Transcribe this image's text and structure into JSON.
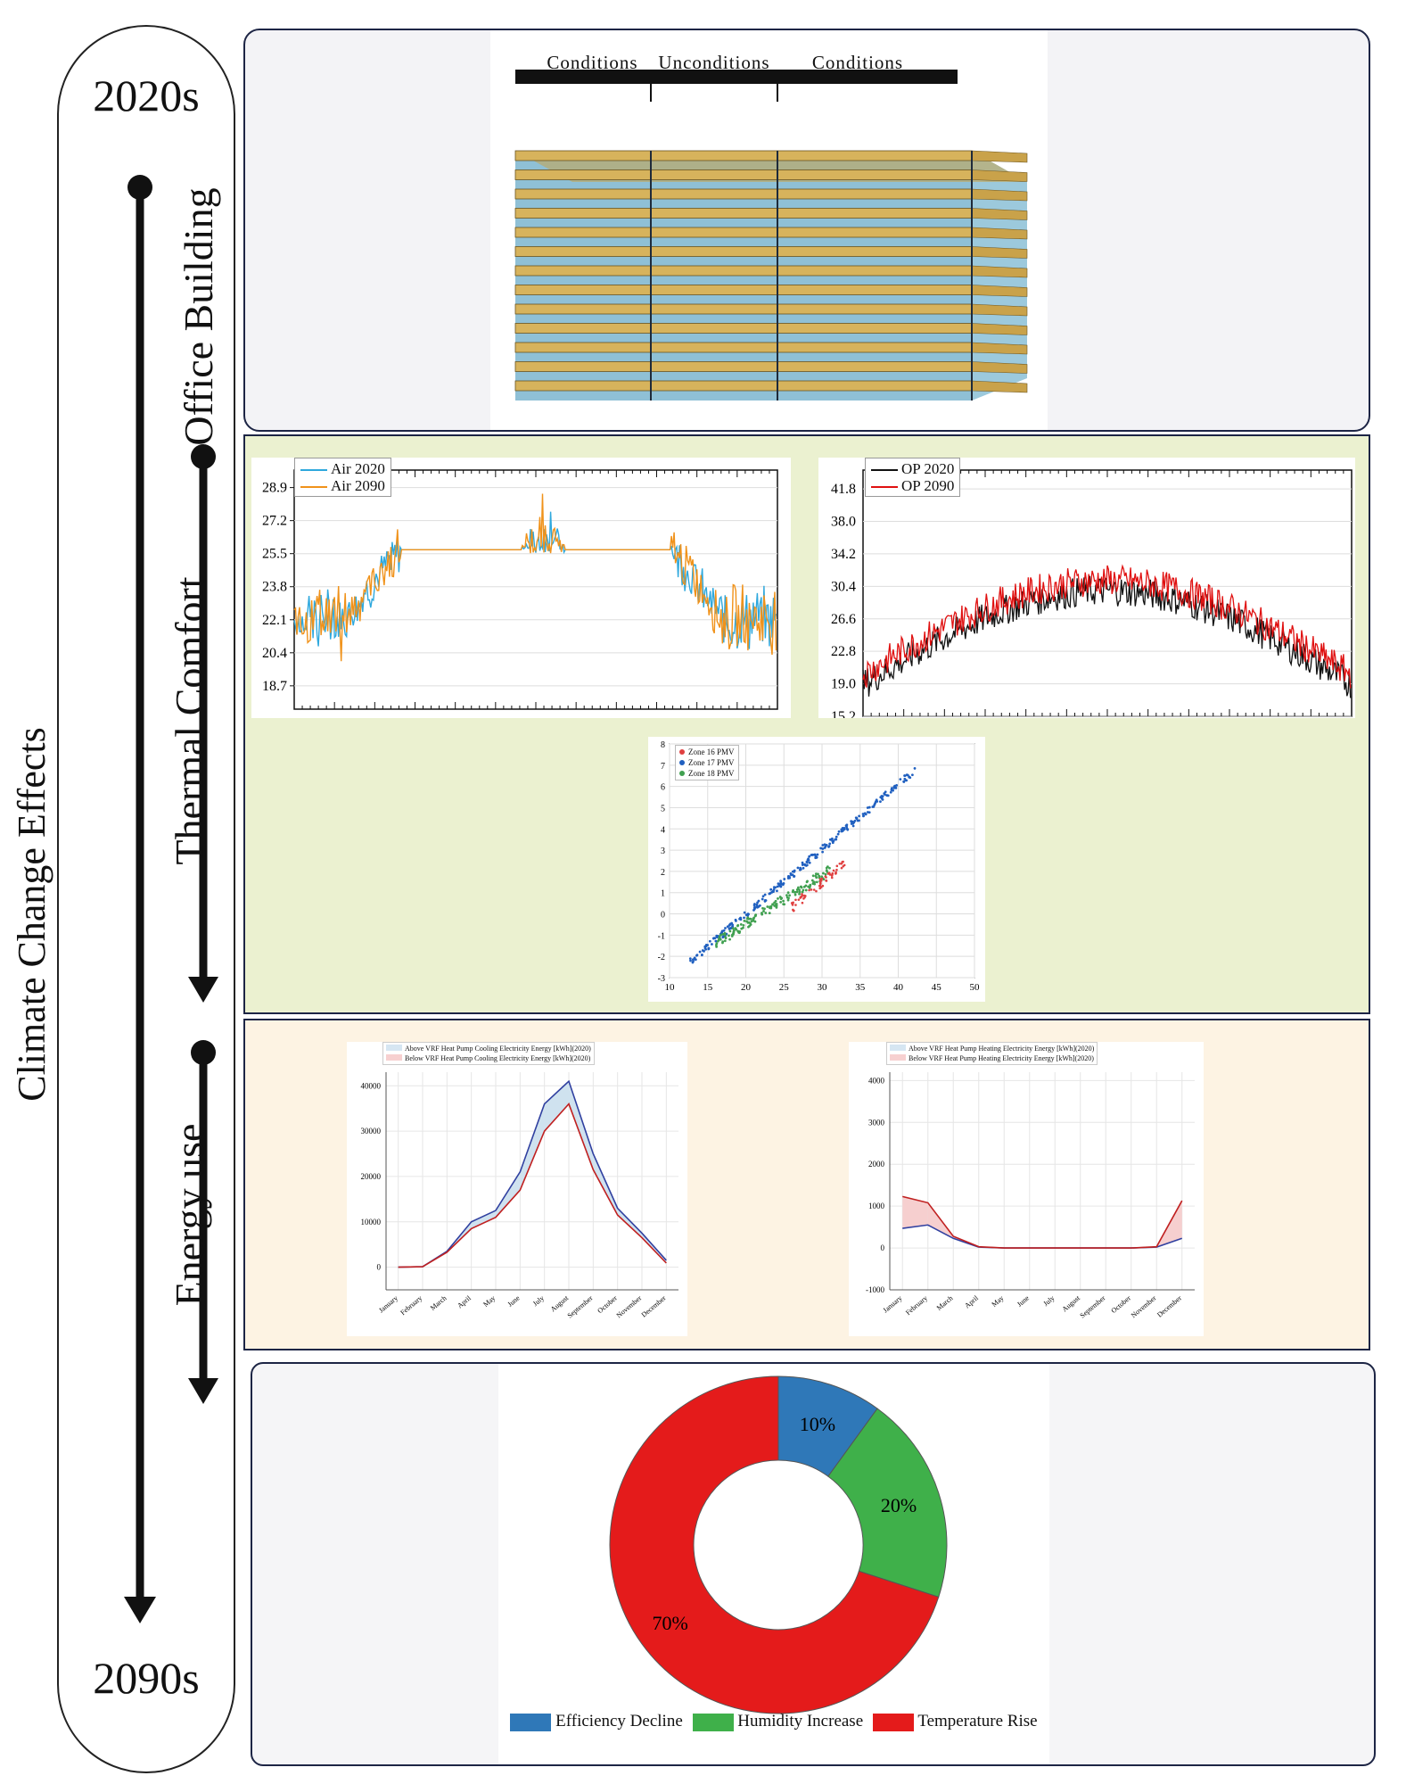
{
  "timeline": {
    "start_label": "2020s",
    "end_label": "2090s",
    "main_label": "Climate Change Effects",
    "steps": [
      {
        "label": "Office Building"
      },
      {
        "label": "Thermal Comfort"
      },
      {
        "label": "Energy use"
      }
    ]
  },
  "building": {
    "zone_labels": [
      "Conditions",
      "Unconditions",
      "Conditions"
    ]
  },
  "colors": {
    "panel_building_bg": "#f3f3f6",
    "panel_thermal_bg": "#ebf1d0",
    "panel_energy_bg": "#fdf3e3",
    "panel_summary_bg": "#f5f5f7",
    "air_2020": "#2ea8dd",
    "air_2090": "#f0921a",
    "op_2020": "#111111",
    "op_2090": "#e01010",
    "cooling_line_above": "#3040a0",
    "cooling_line_below": "#c02020",
    "efficiency": "#2f78b8",
    "humidity": "#3fb04a",
    "temperature": "#e41b1b"
  },
  "chart_data": [
    {
      "type": "line",
      "legend": [
        "Air 2020",
        "Air 2090"
      ],
      "yticks": [
        "28.9",
        "27.2",
        "25.5",
        "23.8",
        "22.1",
        "20.4",
        "18.7"
      ],
      "ylim": [
        17.5,
        29.8
      ]
    },
    {
      "type": "line",
      "legend": [
        "OP 2020",
        "OP 2090"
      ],
      "yticks": [
        "41.8",
        "38.0",
        "34.2",
        "30.4",
        "26.6",
        "22.8",
        "19.0",
        "15.2"
      ],
      "ylim": [
        15.2,
        44
      ]
    },
    {
      "type": "scatter",
      "legend": [
        "Zone 16 PMV",
        "Zone 17 PMV",
        "Zone 18 PMV"
      ],
      "xticks": [
        "10",
        "15",
        "20",
        "25",
        "30",
        "35",
        "40",
        "45",
        "50"
      ],
      "yticks": [
        "8",
        "7",
        "6",
        "5",
        "4",
        "3",
        "2",
        "1",
        "0",
        "-1",
        "-2",
        "-3"
      ],
      "xlim": [
        10,
        50
      ],
      "ylim": [
        -3,
        8
      ]
    },
    {
      "type": "area",
      "legend": [
        "Above VRF Heat Pump Cooling Electricity Energy [kWh](2020)",
        "Below VRF Heat Pump Cooling Electricity Energy [kWh](2020)"
      ],
      "categories": [
        "January",
        "February",
        "March",
        "April",
        "May",
        "June",
        "July",
        "August",
        "September",
        "October",
        "November",
        "December"
      ],
      "yticks": [
        "40000",
        "30000",
        "20000",
        "10000",
        "0"
      ],
      "ylim": [
        -5000,
        43000
      ],
      "series": [
        {
          "name": "Above",
          "values": [
            0,
            100,
            3500,
            10000,
            12500,
            21000,
            36000,
            41000,
            25000,
            13000,
            7500,
            1500
          ]
        },
        {
          "name": "Below",
          "values": [
            0,
            100,
            3300,
            8500,
            11000,
            17000,
            30000,
            36000,
            21500,
            11500,
            6500,
            900
          ]
        }
      ]
    },
    {
      "type": "area",
      "legend": [
        "Above VRF Heat Pump Heating Electricity Energy [kWh](2020)",
        "Below VRF Heat Pump Heating Electricity Energy [kWh](2020)"
      ],
      "categories": [
        "January",
        "February",
        "March",
        "April",
        "May",
        "June",
        "July",
        "August",
        "September",
        "October",
        "November",
        "December"
      ],
      "yticks": [
        "4000",
        "3000",
        "2000",
        "1000",
        "0",
        "-1000"
      ],
      "ylim": [
        -1000,
        4200
      ],
      "series": [
        {
          "name": "Above",
          "values": [
            470,
            550,
            230,
            20,
            0,
            0,
            0,
            0,
            0,
            0,
            20,
            230
          ]
        },
        {
          "name": "Below",
          "values": [
            1230,
            1080,
            280,
            30,
            0,
            0,
            0,
            0,
            0,
            0,
            30,
            1130
          ]
        }
      ]
    },
    {
      "type": "pie",
      "categories": [
        "Efficiency Decline",
        "Humidity Increase",
        "Temperature Rise"
      ],
      "values": [
        10,
        20,
        70
      ],
      "labels": [
        "10%",
        "20%",
        "70%"
      ]
    }
  ]
}
